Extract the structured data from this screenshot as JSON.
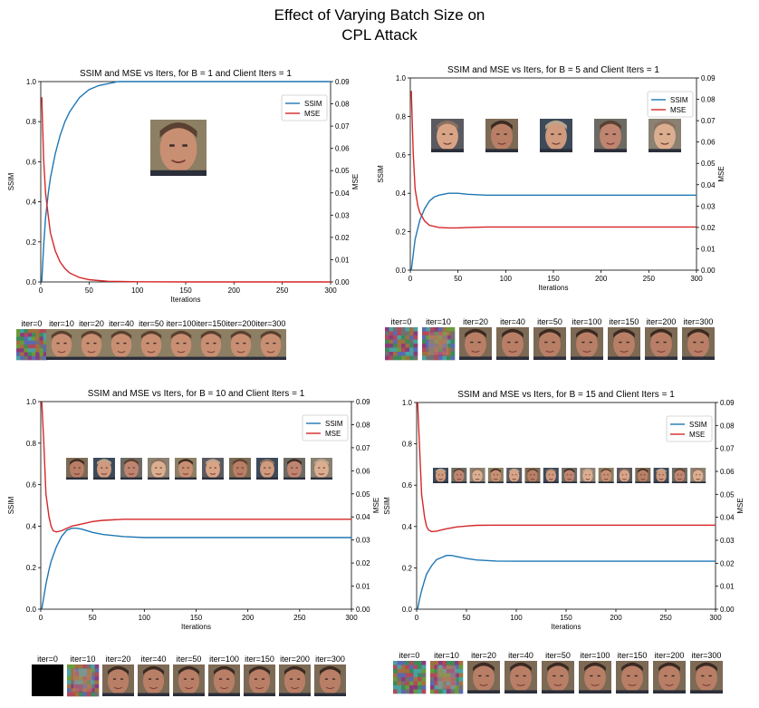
{
  "figure": {
    "title_line1": "Effect of Varying Batch Size on",
    "title_line2": "CPL Attack"
  },
  "colors": {
    "ssim": "#1f77b4",
    "mse": "#d62728"
  },
  "chart_data": [
    {
      "type": "line",
      "title": "SSIM and MSE vs Iters, for B = 1 and Client Iters = 1",
      "xlabel": "Iterations",
      "ylabel_left": "SSIM",
      "ylabel_right": "MSE",
      "xlim": [
        0,
        300
      ],
      "ylim_left": [
        0,
        1.0
      ],
      "ylim_right": [
        0,
        0.09
      ],
      "x_ticks": [
        0,
        50,
        100,
        150,
        200,
        250,
        300
      ],
      "y_ticks_left": [
        "0.0",
        "0.2",
        "0.4",
        "0.6",
        "0.8",
        "1.0"
      ],
      "y_ticks_right": [
        "0.00",
        "0.01",
        "0.02",
        "0.03",
        "0.04",
        "0.05",
        "0.06",
        "0.07",
        "0.08",
        "0.09"
      ],
      "legend": "top-right",
      "series": [
        {
          "name": "SSIM",
          "axis": "left",
          "x": [
            1,
            3,
            5,
            8,
            10,
            15,
            20,
            25,
            30,
            40,
            50,
            60,
            70,
            80,
            90,
            100,
            150,
            200,
            250,
            300
          ],
          "y": [
            0.0,
            0.18,
            0.32,
            0.45,
            0.52,
            0.64,
            0.73,
            0.8,
            0.85,
            0.92,
            0.96,
            0.98,
            0.99,
            1.0,
            1.0,
            1.0,
            1.0,
            1.0,
            1.0,
            1.0
          ]
        },
        {
          "name": "MSE",
          "axis": "right",
          "x": [
            1,
            3,
            5,
            8,
            10,
            15,
            20,
            25,
            30,
            40,
            50,
            60,
            70,
            80,
            100,
            150,
            200,
            250,
            300
          ],
          "y": [
            0.083,
            0.055,
            0.04,
            0.029,
            0.022,
            0.014,
            0.009,
            0.006,
            0.004,
            0.002,
            0.001,
            0.0006,
            0.0003,
            0.0002,
            0.0001,
            0.0,
            0.0,
            0.0,
            0.0
          ]
        }
      ],
      "iter_labels": [
        "iter=0",
        "iter=10",
        "iter=20",
        "iter=40",
        "iter=50",
        "iter=100",
        "iter=150",
        "iter=200",
        "iter=300"
      ],
      "inset_faces": 1
    },
    {
      "type": "line",
      "title": "SSIM and MSE vs Iters, for B = 5 and Client Iters = 1",
      "xlabel": "Iterations",
      "ylabel_left": "SSIM",
      "ylabel_right": "MSE",
      "xlim": [
        0,
        300
      ],
      "ylim_left": [
        0,
        1.0
      ],
      "ylim_right": [
        0,
        0.09
      ],
      "x_ticks": [
        0,
        50,
        100,
        150,
        200,
        250,
        300
      ],
      "y_ticks_left": [
        "0.0",
        "0.2",
        "0.4",
        "0.6",
        "0.8",
        "1.0"
      ],
      "y_ticks_right": [
        "0.00",
        "0.01",
        "0.02",
        "0.03",
        "0.04",
        "0.05",
        "0.06",
        "0.07",
        "0.08",
        "0.09"
      ],
      "legend": "top-right",
      "series": [
        {
          "name": "SSIM",
          "axis": "left",
          "x": [
            1,
            3,
            5,
            8,
            10,
            15,
            20,
            25,
            30,
            40,
            50,
            60,
            80,
            100,
            150,
            200,
            250,
            300
          ],
          "y": [
            0.0,
            0.08,
            0.16,
            0.22,
            0.26,
            0.32,
            0.36,
            0.38,
            0.39,
            0.4,
            0.4,
            0.395,
            0.39,
            0.39,
            0.39,
            0.39,
            0.39,
            0.39
          ]
        },
        {
          "name": "MSE",
          "axis": "right",
          "x": [
            1,
            3,
            5,
            8,
            10,
            15,
            20,
            25,
            30,
            40,
            50,
            60,
            80,
            100,
            150,
            200,
            250,
            300
          ],
          "y": [
            0.084,
            0.055,
            0.038,
            0.03,
            0.027,
            0.023,
            0.021,
            0.0205,
            0.02,
            0.0198,
            0.0198,
            0.02,
            0.0202,
            0.0202,
            0.0202,
            0.0202,
            0.0202,
            0.0202
          ]
        }
      ],
      "iter_labels": [
        "iter=0",
        "iter=10",
        "iter=20",
        "iter=40",
        "iter=50",
        "iter=100",
        "iter=150",
        "iter=200",
        "iter=300"
      ],
      "inset_faces": 5
    },
    {
      "type": "line",
      "title": "SSIM and MSE vs Iters, for B = 10 and Client Iters = 1",
      "xlabel": "Iterations",
      "ylabel_left": "SSIM",
      "ylabel_right": "MSE",
      "xlim": [
        0,
        300
      ],
      "ylim_left": [
        0,
        1.0
      ],
      "ylim_right": [
        0,
        0.09
      ],
      "x_ticks": [
        0,
        50,
        100,
        150,
        200,
        250,
        300
      ],
      "y_ticks_left": [
        "0.0",
        "0.2",
        "0.4",
        "0.6",
        "0.8",
        "1.0"
      ],
      "y_ticks_right": [
        "0.00",
        "0.01",
        "0.02",
        "0.03",
        "0.04",
        "0.05",
        "0.06",
        "0.07",
        "0.08",
        "0.09"
      ],
      "legend": "top-right",
      "series": [
        {
          "name": "SSIM",
          "axis": "left",
          "x": [
            1,
            3,
            5,
            8,
            10,
            15,
            20,
            25,
            30,
            35,
            40,
            50,
            60,
            80,
            100,
            150,
            200,
            250,
            300
          ],
          "y": [
            0.0,
            0.06,
            0.12,
            0.19,
            0.23,
            0.3,
            0.35,
            0.38,
            0.39,
            0.39,
            0.385,
            0.37,
            0.36,
            0.35,
            0.345,
            0.345,
            0.345,
            0.345,
            0.345
          ]
        },
        {
          "name": "MSE",
          "axis": "right",
          "x": [
            1,
            3,
            5,
            8,
            10,
            12,
            15,
            20,
            25,
            30,
            40,
            50,
            60,
            80,
            100,
            150,
            200,
            250,
            300
          ],
          "y": [
            0.09,
            0.072,
            0.05,
            0.04,
            0.036,
            0.034,
            0.0335,
            0.034,
            0.035,
            0.036,
            0.037,
            0.038,
            0.0385,
            0.039,
            0.039,
            0.039,
            0.039,
            0.039,
            0.039
          ]
        }
      ],
      "iter_labels": [
        "iter=0",
        "iter=10",
        "iter=20",
        "iter=40",
        "iter=50",
        "iter=100",
        "iter=150",
        "iter=200",
        "iter=300"
      ],
      "inset_faces": 10
    },
    {
      "type": "line",
      "title": "SSIM and MSE vs Iters, for B = 15 and Client Iters = 1",
      "xlabel": "Iterations",
      "ylabel_left": "SSIM",
      "ylabel_right": "MSE",
      "xlim": [
        0,
        300
      ],
      "ylim_left": [
        0,
        1.0
      ],
      "ylim_right": [
        0,
        0.09
      ],
      "x_ticks": [
        0,
        50,
        100,
        150,
        200,
        250,
        300
      ],
      "y_ticks_left": [
        "0.0",
        "0.2",
        "0.4",
        "0.6",
        "0.8",
        "1.0"
      ],
      "y_ticks_right": [
        "0.00",
        "0.01",
        "0.02",
        "0.03",
        "0.04",
        "0.05",
        "0.06",
        "0.07",
        "0.08",
        "0.09"
      ],
      "legend": "top-right",
      "series": [
        {
          "name": "SSIM",
          "axis": "left",
          "x": [
            1,
            3,
            5,
            8,
            10,
            15,
            20,
            25,
            30,
            35,
            40,
            50,
            60,
            80,
            100,
            150,
            200,
            250,
            300
          ],
          "y": [
            0.0,
            0.05,
            0.09,
            0.14,
            0.17,
            0.21,
            0.24,
            0.25,
            0.26,
            0.26,
            0.255,
            0.245,
            0.238,
            0.233,
            0.232,
            0.232,
            0.232,
            0.232,
            0.232
          ]
        },
        {
          "name": "MSE",
          "axis": "right",
          "x": [
            1,
            3,
            5,
            8,
            10,
            12,
            15,
            20,
            25,
            30,
            40,
            50,
            60,
            80,
            100,
            150,
            200,
            250,
            300
          ],
          "y": [
            0.09,
            0.07,
            0.05,
            0.04,
            0.036,
            0.0345,
            0.0338,
            0.034,
            0.0345,
            0.035,
            0.0358,
            0.0362,
            0.0365,
            0.0366,
            0.0366,
            0.0366,
            0.0366,
            0.0366,
            0.0366
          ]
        }
      ],
      "iter_labels": [
        "iter=0",
        "iter=10",
        "iter=20",
        "iter=40",
        "iter=50",
        "iter=100",
        "iter=150",
        "iter=200",
        "iter=300"
      ],
      "inset_faces": 15
    }
  ]
}
